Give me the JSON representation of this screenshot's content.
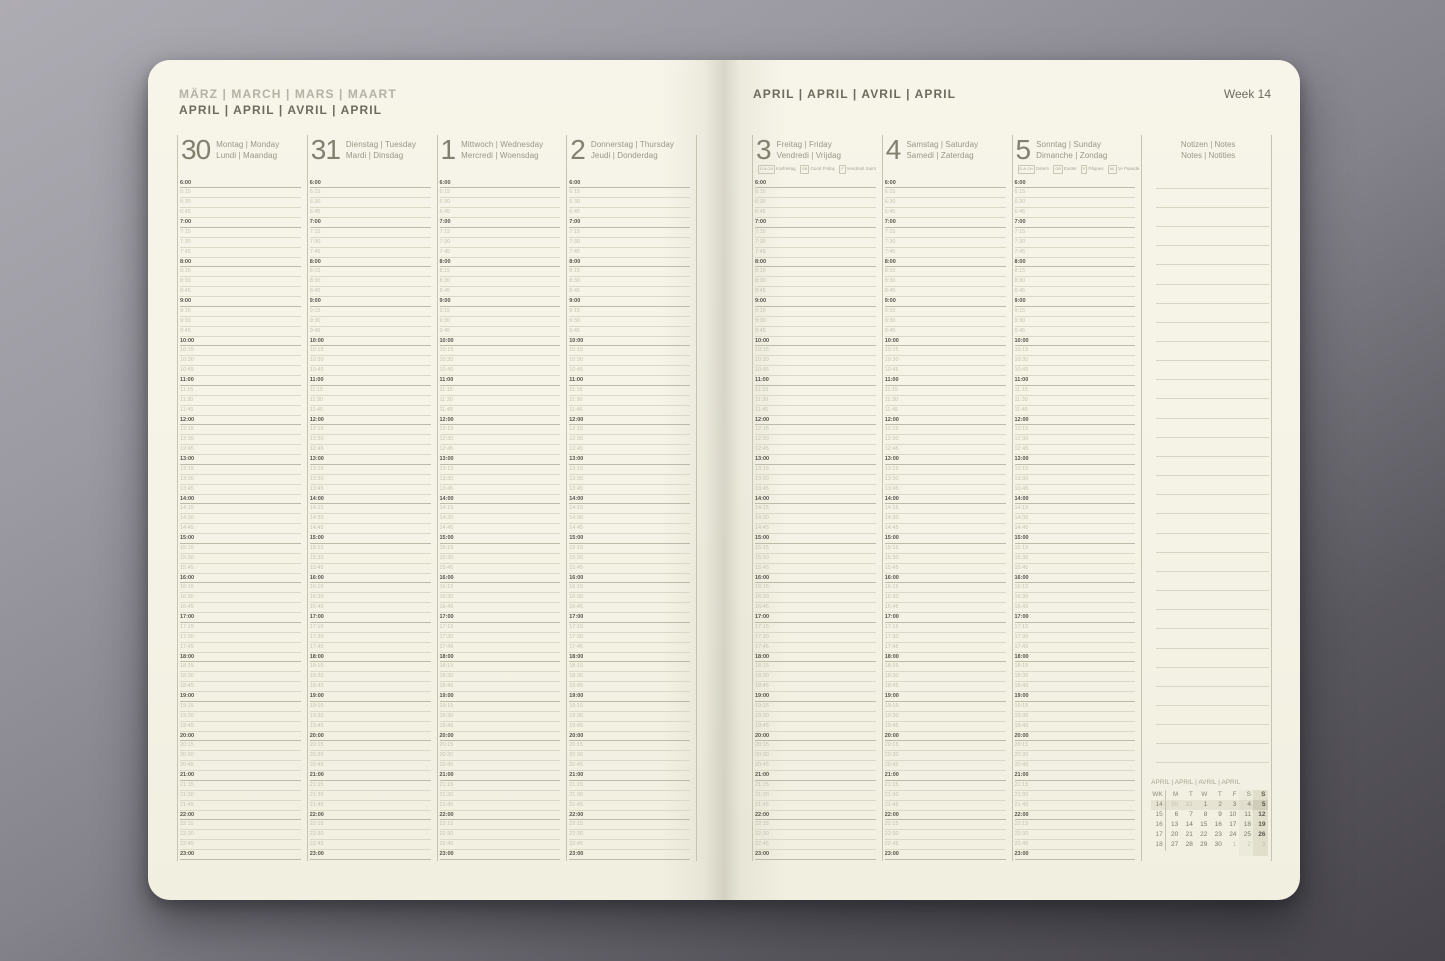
{
  "left_page": {
    "month_line_previous": "MÄRZ | MARCH | MARS | MAART",
    "month_line_current": "APRIL | APRIL | AVRIL | APRIL"
  },
  "right_page": {
    "month_line": "APRIL | APRIL | AVRIL | APRIL",
    "week_label": "Week 14"
  },
  "schedule": {
    "times": [
      "6:00",
      "6:15",
      "6:30",
      "6:45",
      "7:00",
      "7:15",
      "7:30",
      "7:45",
      "8:00",
      "8:15",
      "8:30",
      "8:45",
      "9:00",
      "9:15",
      "9:30",
      "9:45",
      "10:00",
      "10:15",
      "10:30",
      "10:45",
      "11:00",
      "11:15",
      "11:30",
      "11:45",
      "12:00",
      "12:15",
      "12:30",
      "12:45",
      "13:00",
      "13:15",
      "13:30",
      "13:45",
      "14:00",
      "14:15",
      "14:30",
      "14:45",
      "15:00",
      "15:15",
      "15:30",
      "15:45",
      "16:00",
      "16:15",
      "16:30",
      "16:45",
      "17:00",
      "17:15",
      "17:30",
      "17:45",
      "18:00",
      "18:15",
      "18:30",
      "18:45",
      "19:00",
      "19:15",
      "19:30",
      "19:45",
      "20:00",
      "20:15",
      "20:30",
      "20:45",
      "21:00",
      "21:15",
      "21:30",
      "21:45",
      "22:00",
      "22:15",
      "22:30",
      "22:45",
      "23:00"
    ]
  },
  "days": [
    {
      "page": "left",
      "number": "30",
      "names_line1": "Montag | Monday",
      "names_line2": "Lundi | Maandag"
    },
    {
      "page": "left",
      "number": "31",
      "names_line1": "Dienstag | Tuesday",
      "names_line2": "Mardi | Dinsdag"
    },
    {
      "page": "left",
      "number": "1",
      "names_line1": "Mittwoch | Wednesday",
      "names_line2": "Mercredi | Woensdag"
    },
    {
      "page": "left",
      "number": "2",
      "names_line1": "Donnerstag | Thursday",
      "names_line2": "Jeudi | Donderdag"
    },
    {
      "page": "right",
      "number": "3",
      "names_line1": "Freitag | Friday",
      "names_line2": "Vendredi | Vrijdag",
      "holiday": [
        {
          "codes": "D A CH",
          "name": "Karfreitag"
        },
        {
          "codes": "GB",
          "name": "Good Friday"
        },
        {
          "codes": "F",
          "name": "Vendredi Saint"
        },
        {
          "codes": "NL",
          "name": "Goede Vrijdag"
        }
      ]
    },
    {
      "page": "right",
      "number": "4",
      "names_line1": "Samstag | Saturday",
      "names_line2": "Samedi | Zaterdag"
    },
    {
      "page": "right",
      "number": "5",
      "names_line1": "Sonntag | Sunday",
      "names_line2": "Dimanche | Zondag",
      "holiday": [
        {
          "codes": "D A CH",
          "name": "Ostern"
        },
        {
          "codes": "GB",
          "name": "Easter"
        },
        {
          "codes": "F",
          "name": "Pâques"
        },
        {
          "codes": "NL",
          "name": "1e Paasdag"
        }
      ]
    }
  ],
  "notes": {
    "title_line1": "Notizen | Notes",
    "title_line2": "Notes | Notities",
    "ruled_line_count": 31
  },
  "mini_calendar": {
    "title": "APRIL | APRIL | AVRIL | APRIL",
    "header": [
      "WK",
      "M",
      "T",
      "W",
      "T",
      "F",
      "S",
      "S"
    ],
    "rows": [
      {
        "wk": "14",
        "days": [
          "30",
          "31",
          "1",
          "2",
          "3",
          "4",
          "5"
        ],
        "muted_indices": [
          0,
          1
        ],
        "current_week": true,
        "current_day_index": 6
      },
      {
        "wk": "15",
        "days": [
          "6",
          "7",
          "8",
          "9",
          "10",
          "11",
          "12"
        ]
      },
      {
        "wk": "16",
        "days": [
          "13",
          "14",
          "15",
          "16",
          "17",
          "18",
          "19"
        ]
      },
      {
        "wk": "17",
        "days": [
          "20",
          "21",
          "22",
          "23",
          "24",
          "25",
          "26"
        ]
      },
      {
        "wk": "18",
        "days": [
          "27",
          "28",
          "29",
          "30",
          "1",
          "2",
          "3"
        ],
        "muted_indices": [
          4,
          5,
          6
        ]
      }
    ]
  },
  "colors": {
    "paper": "#f6f4e7",
    "background_top": "#aeacb3",
    "background_bottom": "#47454b",
    "dark_text": "#56534a",
    "accent_text": "#6e6b5e",
    "muted_text": "#c5c2b0",
    "quarter_line": "#dbd8c6",
    "hour_line": "#bebaa7",
    "weekend_shade": "#eceada",
    "sunday_shade": "#e1decc",
    "current_day_shade": "#cfccb9"
  }
}
